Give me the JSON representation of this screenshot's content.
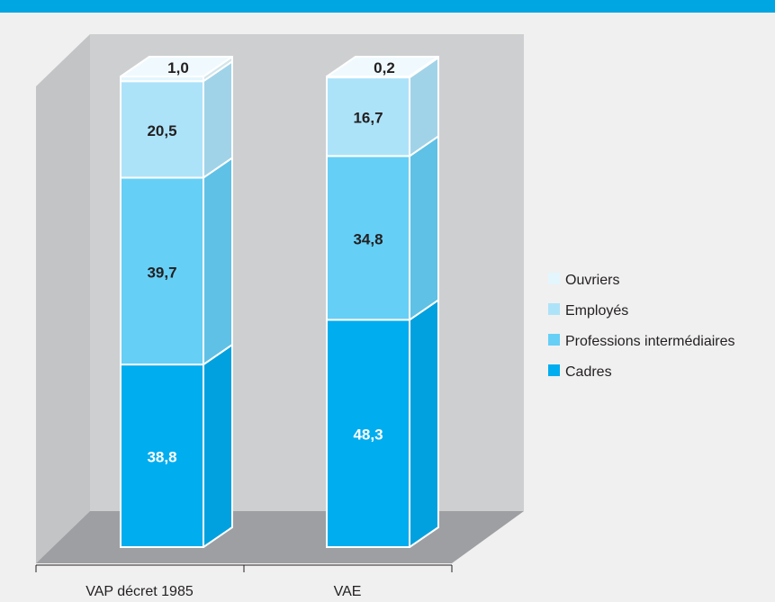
{
  "chart_data": {
    "type": "bar",
    "stacked": true,
    "style": "3d",
    "categories": [
      "VAP décret 1985",
      "VAE"
    ],
    "series": [
      {
        "name": "Cadres",
        "color": "#00adef",
        "label_color": "#ffffff",
        "values": [
          38.8,
          48.3
        ],
        "labels": [
          "38,8",
          "48,3"
        ]
      },
      {
        "name": "Professions intermédiaires",
        "color": "#66cff6",
        "label_color": "#231f20",
        "values": [
          39.7,
          34.8
        ],
        "labels": [
          "39,7",
          "34,8"
        ]
      },
      {
        "name": "Employés",
        "color": "#ade3f9",
        "label_color": "#231f20",
        "values": [
          20.5,
          16.7
        ],
        "labels": [
          "20,5",
          "16,7"
        ]
      },
      {
        "name": "Ouvriers",
        "color": "#e3f6fd",
        "label_color": "#231f20",
        "values": [
          1.0,
          0.2
        ],
        "labels": [
          "1,0",
          "0,2"
        ]
      }
    ],
    "ylim": [
      0,
      100
    ],
    "legend_position": "right",
    "grid": false,
    "title": "",
    "xlabel": "",
    "ylabel": ""
  },
  "colors": {
    "top_rule": "#00a6e2",
    "page_background": "#f0f0f0",
    "back_wall": "#cdcfd1",
    "side_wall": "#c2c4c6",
    "floor": "#9d9fa2"
  }
}
